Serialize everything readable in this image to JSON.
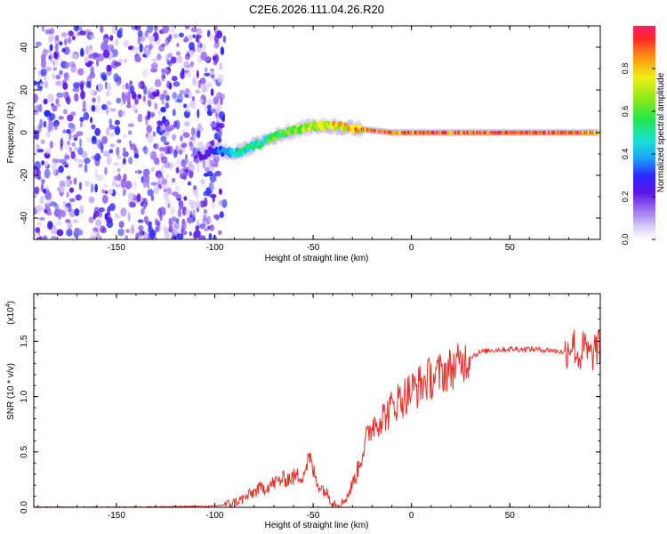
{
  "title": "C2E6.2026.111.04.26.R20",
  "chart_data": [
    {
      "type": "heatmap",
      "name": "spectrogram",
      "xlabel": "Height of straight line (km)",
      "ylabel": "Frequency (Hz)",
      "xlim": [
        -192,
        96
      ],
      "ylim": [
        -50,
        50
      ],
      "xticks": [
        -150,
        -100,
        -50,
        0,
        50
      ],
      "yticks": [
        -40,
        -20,
        0,
        20,
        40
      ],
      "colorbar": {
        "label": "Normalized spectral amplitude",
        "range": [
          0,
          1
        ],
        "ticks": [
          0.0,
          0.2,
          0.4,
          0.6,
          0.8
        ]
      },
      "signal_track": {
        "x": [
          -110,
          -100,
          -90,
          -80,
          -70,
          -60,
          -50,
          -40,
          -30,
          -20,
          -10,
          0,
          10,
          20,
          30,
          40,
          50,
          60,
          70,
          80,
          90,
          95
        ],
        "frequency": [
          -12,
          -8,
          -10,
          -6,
          -2,
          1,
          3,
          3,
          2,
          1,
          0,
          0,
          0,
          0,
          0,
          0,
          0,
          0,
          0,
          0,
          0,
          0
        ],
        "amplitude": [
          0.15,
          0.25,
          0.45,
          0.5,
          0.55,
          0.6,
          0.7,
          0.75,
          0.8,
          0.85,
          0.9,
          0.92,
          0.95,
          0.95,
          0.95,
          0.95,
          0.95,
          0.95,
          0.95,
          0.95,
          0.9,
          0.85
        ]
      }
    },
    {
      "type": "line",
      "name": "snr",
      "xlabel": "Height of straight line (km)",
      "ylabel": "SNR (10 * v/v)",
      "exponent_label": "(x10",
      "exponent_power": "4",
      "exponent_close": ")",
      "xlim": [
        -192,
        96
      ],
      "ylim": [
        0,
        1.93
      ],
      "xticks": [
        -150,
        -100,
        -50,
        0,
        50
      ],
      "yticks": [
        0.0,
        0.5,
        1.0,
        1.5
      ],
      "series": [
        {
          "name": "SNR",
          "color": "#e8302a",
          "x": [
            -192,
            -150,
            -100,
            -92,
            -85,
            -78,
            -72,
            -66,
            -60,
            -55,
            -52,
            -48,
            -44,
            -40,
            -36,
            -32,
            -28,
            -24,
            -20,
            -16,
            -12,
            -8,
            -4,
            0,
            4,
            8,
            12,
            16,
            20,
            25,
            30,
            35,
            40,
            50,
            60,
            70,
            78,
            82,
            85,
            88,
            91,
            94,
            96
          ],
          "y": [
            0.0,
            0.0,
            0.01,
            0.03,
            0.08,
            0.16,
            0.2,
            0.25,
            0.27,
            0.3,
            0.45,
            0.22,
            0.15,
            0.05,
            0.02,
            0.12,
            0.3,
            0.55,
            0.75,
            0.8,
            0.85,
            0.95,
            1.0,
            1.05,
            1.1,
            1.15,
            1.18,
            1.22,
            1.25,
            1.3,
            1.36,
            1.4,
            1.42,
            1.43,
            1.43,
            1.42,
            1.4,
            1.5,
            1.35,
            1.45,
            1.35,
            1.45,
            1.42
          ]
        }
      ]
    }
  ]
}
